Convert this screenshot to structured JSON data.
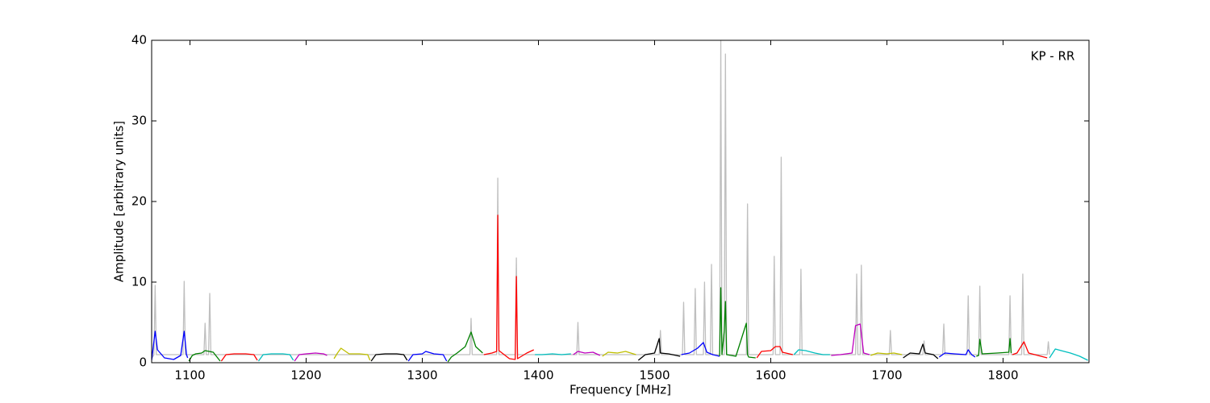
{
  "chart_data": {
    "type": "line",
    "annotation": "KP - RR",
    "xlabel": "Frequency [MHz]",
    "ylabel": "Amplitude [arbitrary units]",
    "xlim": [
      1067,
      1874
    ],
    "ylim": [
      0,
      40
    ],
    "xticks": [
      1100,
      1200,
      1300,
      1400,
      1500,
      1600,
      1700,
      1800
    ],
    "yticks": [
      0,
      10,
      20,
      30,
      40
    ],
    "series": [
      {
        "color": "#bfbfbf",
        "x": [
          1067,
          1069,
          1070,
          1071,
          1094,
          1095,
          1096,
          1112,
          1113,
          1114,
          1116,
          1117,
          1118,
          1341,
          1342,
          1343,
          1364,
          1365,
          1366,
          1380,
          1381,
          1382,
          1433,
          1434,
          1435,
          1504,
          1505,
          1506,
          1524,
          1525,
          1526,
          1534,
          1535,
          1536,
          1542,
          1543,
          1544,
          1548,
          1549,
          1550,
          1556,
          1557,
          1558,
          1560,
          1561,
          1562,
          1579,
          1580,
          1581,
          1602,
          1603,
          1604,
          1608,
          1609,
          1610,
          1625,
          1626,
          1627,
          1673,
          1674,
          1675,
          1677,
          1678,
          1679,
          1702,
          1703,
          1704,
          1731,
          1732,
          1733,
          1748,
          1749,
          1750,
          1769,
          1770,
          1771,
          1779,
          1780,
          1781,
          1805,
          1806,
          1807,
          1816,
          1817,
          1818,
          1838,
          1839,
          1840
        ],
        "values": [
          0.5,
          1,
          9.6,
          1,
          1,
          10.1,
          1,
          1,
          4.9,
          1,
          1,
          8.6,
          1,
          1,
          5.5,
          1,
          1,
          22.9,
          1,
          1,
          13,
          1,
          1,
          5,
          1,
          1,
          4,
          1,
          1,
          7.5,
          1,
          1,
          9.2,
          1,
          1,
          10,
          1,
          1,
          12.2,
          1,
          1,
          40,
          1,
          1,
          38.3,
          1,
          1,
          19.7,
          1,
          1,
          13.2,
          1,
          1,
          25.5,
          1,
          1,
          11.6,
          1,
          1,
          11,
          1,
          1,
          12.1,
          1,
          1,
          4,
          1,
          1,
          2.7,
          1,
          1,
          4.8,
          1,
          1,
          8.3,
          1,
          1,
          9.5,
          1,
          1,
          8.3,
          1,
          1,
          11,
          1,
          1,
          2.6,
          1
        ]
      },
      {
        "color": "#0000ff",
        "x": [
          1067,
          1068,
          1070,
          1072,
          1078,
          1086,
          1092,
          1095,
          1097,
          1098
        ],
        "values": [
          0.3,
          1.5,
          3.9,
          1.6,
          0.6,
          0.4,
          0.9,
          3.9,
          1.0,
          0.6
        ]
      },
      {
        "color": "#008000",
        "x": [
          1099,
          1102,
          1105,
          1110,
          1113,
          1120,
          1126
        ],
        "values": [
          0.2,
          0.9,
          1.1,
          1.2,
          1.5,
          1.3,
          0.2
        ]
      },
      {
        "color": "#ff0000",
        "x": [
          1127,
          1131,
          1138,
          1148,
          1155,
          1158
        ],
        "values": [
          0.2,
          1.0,
          1.1,
          1.1,
          1.0,
          0.3
        ]
      },
      {
        "color": "#00bfbf",
        "x": [
          1159,
          1163,
          1170,
          1180,
          1186,
          1189
        ],
        "values": [
          0.2,
          1.0,
          1.1,
          1.1,
          1.0,
          0.3
        ]
      },
      {
        "color": "#bf00bf",
        "x": [
          1190,
          1194,
          1200,
          1208,
          1215,
          1218
        ],
        "values": [
          0.2,
          1.0,
          1.1,
          1.2,
          1.1,
          0.9
        ]
      },
      {
        "color": "#bfbf00",
        "x": [
          1224,
          1227,
          1230,
          1237,
          1246,
          1253,
          1255
        ],
        "values": [
          0.5,
          1.2,
          1.8,
          1.1,
          1.1,
          1.0,
          0.3
        ]
      },
      {
        "color": "#000000",
        "x": [
          1256,
          1260,
          1268,
          1278,
          1284,
          1287
        ],
        "values": [
          0.2,
          1.0,
          1.1,
          1.1,
          1.0,
          0.3
        ]
      },
      {
        "color": "#0000ff",
        "x": [
          1288,
          1292,
          1300,
          1303,
          1310,
          1318,
          1321
        ],
        "values": [
          0.2,
          1.0,
          1.1,
          1.4,
          1.1,
          1.0,
          0.2
        ]
      },
      {
        "color": "#008000",
        "x": [
          1322,
          1325,
          1330,
          1337,
          1342,
          1346,
          1352
        ],
        "values": [
          0.1,
          0.7,
          1.2,
          2.0,
          3.8,
          2.0,
          1.2
        ]
      },
      {
        "color": "#ff0000",
        "x": [
          1353,
          1360,
          1364,
          1365,
          1366,
          1375,
          1380,
          1381,
          1382,
          1390,
          1396
        ],
        "values": [
          1.0,
          1.2,
          1.4,
          18.3,
          1.5,
          0.5,
          0.4,
          10.7,
          0.5,
          1.2,
          1.6
        ]
      },
      {
        "color": "#00bfbf",
        "x": [
          1397,
          1403,
          1412,
          1420,
          1428
        ],
        "values": [
          1.0,
          1.0,
          1.1,
          1.0,
          1.1
        ]
      },
      {
        "color": "#bf00bf",
        "x": [
          1430,
          1434,
          1440,
          1447,
          1453
        ],
        "values": [
          1.0,
          1.4,
          1.2,
          1.3,
          0.9
        ]
      },
      {
        "color": "#bfbf00",
        "x": [
          1455,
          1460,
          1468,
          1475,
          1484
        ],
        "values": [
          0.8,
          1.3,
          1.2,
          1.4,
          1.0
        ]
      },
      {
        "color": "#000000",
        "x": [
          1486,
          1492,
          1500,
          1504,
          1505,
          1512,
          1522
        ],
        "values": [
          0.3,
          1.0,
          1.2,
          3.0,
          1.2,
          1.1,
          0.8
        ]
      },
      {
        "color": "#0000ff",
        "x": [
          1523,
          1530,
          1537,
          1542,
          1545,
          1550,
          1556
        ],
        "values": [
          1.0,
          1.2,
          1.8,
          2.5,
          1.3,
          1.0,
          0.8
        ]
      },
      {
        "color": "#008000",
        "x": [
          1556,
          1557,
          1558,
          1560,
          1561,
          1562,
          1570,
          1579,
          1580,
          1581,
          1587
        ],
        "values": [
          0.8,
          9.3,
          1.0,
          4.0,
          7.6,
          1.0,
          0.8,
          4.9,
          1.0,
          0.7,
          0.6
        ]
      },
      {
        "color": "#ff0000",
        "x": [
          1588,
          1592,
          1600,
          1604,
          1608,
          1610,
          1619
        ],
        "values": [
          0.6,
          1.4,
          1.5,
          2.0,
          2.0,
          1.3,
          1.0
        ]
      },
      {
        "color": "#00bfbf",
        "x": [
          1620,
          1624,
          1630,
          1638,
          1645,
          1651
        ],
        "values": [
          1.0,
          1.6,
          1.5,
          1.2,
          1.0,
          1.0
        ]
      },
      {
        "color": "#bf00bf",
        "x": [
          1652,
          1660,
          1670,
          1673,
          1677,
          1680,
          1685
        ],
        "values": [
          0.9,
          1.0,
          1.2,
          4.6,
          4.8,
          1.2,
          1.0
        ]
      },
      {
        "color": "#bfbf00",
        "x": [
          1686,
          1692,
          1700,
          1706,
          1713
        ],
        "values": [
          0.9,
          1.2,
          1.1,
          1.2,
          1.0
        ]
      },
      {
        "color": "#000000",
        "x": [
          1714,
          1720,
          1728,
          1731,
          1733,
          1740,
          1744
        ],
        "values": [
          0.6,
          1.2,
          1.1,
          2.3,
          1.2,
          1.0,
          0.5
        ]
      },
      {
        "color": "#0000ff",
        "x": [
          1745,
          1750,
          1758,
          1768,
          1770,
          1773,
          1776
        ],
        "values": [
          0.7,
          1.2,
          1.1,
          1.0,
          1.6,
          1.0,
          0.7
        ]
      },
      {
        "color": "#008000",
        "x": [
          1777,
          1779,
          1780,
          1782,
          1795,
          1805,
          1806,
          1807
        ],
        "values": [
          0.8,
          0.9,
          2.9,
          1.1,
          1.2,
          1.3,
          3.0,
          1.2
        ]
      },
      {
        "color": "#ff0000",
        "x": [
          1808,
          1812,
          1818,
          1822,
          1830,
          1838
        ],
        "values": [
          1.0,
          1.2,
          2.6,
          1.2,
          0.9,
          0.6
        ]
      },
      {
        "color": "#00bfbf",
        "x": [
          1840,
          1845,
          1850,
          1858,
          1866,
          1873
        ],
        "values": [
          0.6,
          1.7,
          1.5,
          1.2,
          0.8,
          0.3
        ]
      }
    ]
  }
}
